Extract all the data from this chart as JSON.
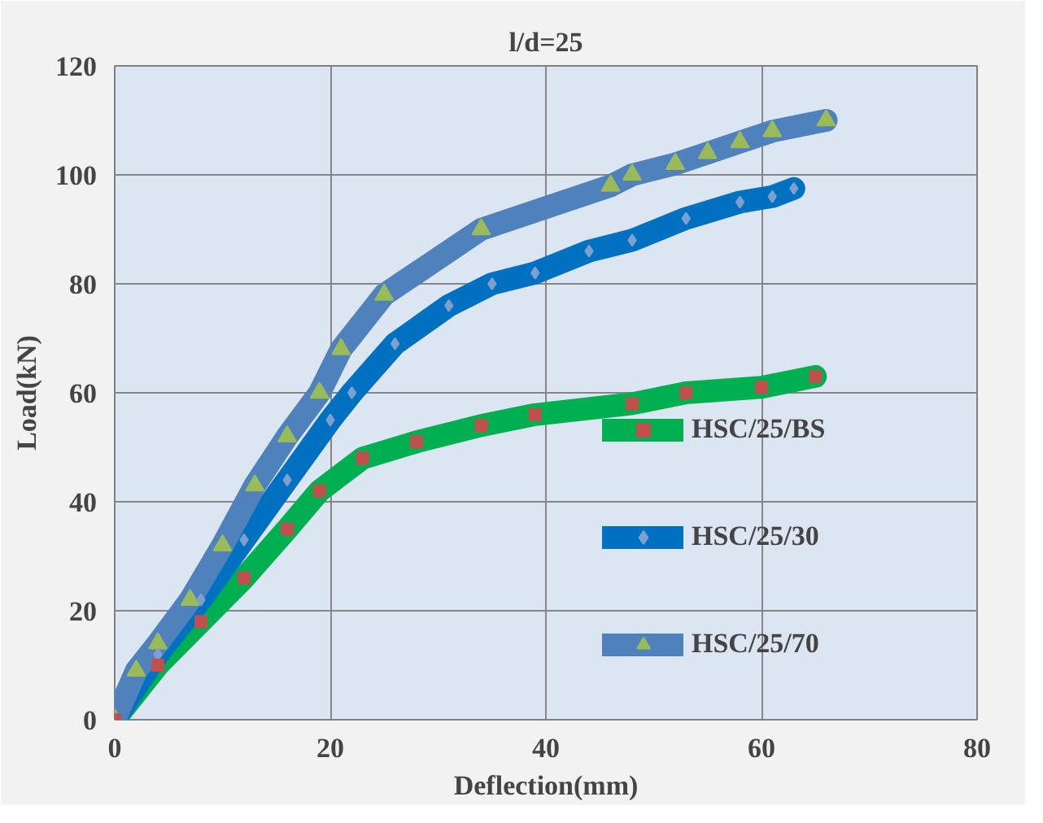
{
  "chart_data": {
    "type": "line",
    "title": "l/d=25",
    "xlabel": "Deflection(mm)",
    "ylabel": "Load(kN)",
    "xlim": [
      0,
      80
    ],
    "xticks": [
      0,
      20,
      40,
      60,
      80
    ],
    "ylim": [
      0,
      120
    ],
    "yticks": [
      0,
      20,
      40,
      60,
      80,
      100,
      120
    ],
    "grid": true,
    "legend": "right",
    "line_style": "solid",
    "series": [
      {
        "name": "HSC/25/BS",
        "color": "#00b050",
        "marker": "square",
        "x": [
          0,
          4,
          8,
          12,
          16,
          19,
          23,
          28,
          34,
          39,
          48,
          53,
          60,
          65
        ],
        "values": [
          0,
          10,
          18,
          26,
          35,
          42,
          48,
          51,
          54,
          56,
          58,
          60,
          61,
          63
        ]
      },
      {
        "name": "HSC/25/30",
        "color": "#0070c0",
        "marker": "diamond",
        "x": [
          0,
          4,
          8,
          12,
          16,
          20,
          22,
          26,
          31,
          35,
          39,
          44,
          48,
          53,
          58,
          61,
          63
        ],
        "values": [
          0,
          12,
          22,
          33,
          44,
          55,
          60,
          69,
          76,
          80,
          82,
          86,
          88,
          92,
          95,
          96,
          97.5
        ]
      },
      {
        "name": "HSC/25/70",
        "color": "#4f81bd",
        "marker": "triangle",
        "x": [
          0,
          2,
          4,
          7,
          10,
          13,
          16,
          19,
          21,
          25,
          34,
          46,
          48,
          52,
          55,
          58,
          61,
          66
        ],
        "values": [
          0,
          9,
          14,
          22,
          32,
          43,
          52,
          60,
          68,
          78,
          90,
          98,
          100,
          102,
          104,
          106,
          108,
          110
        ]
      }
    ]
  }
}
